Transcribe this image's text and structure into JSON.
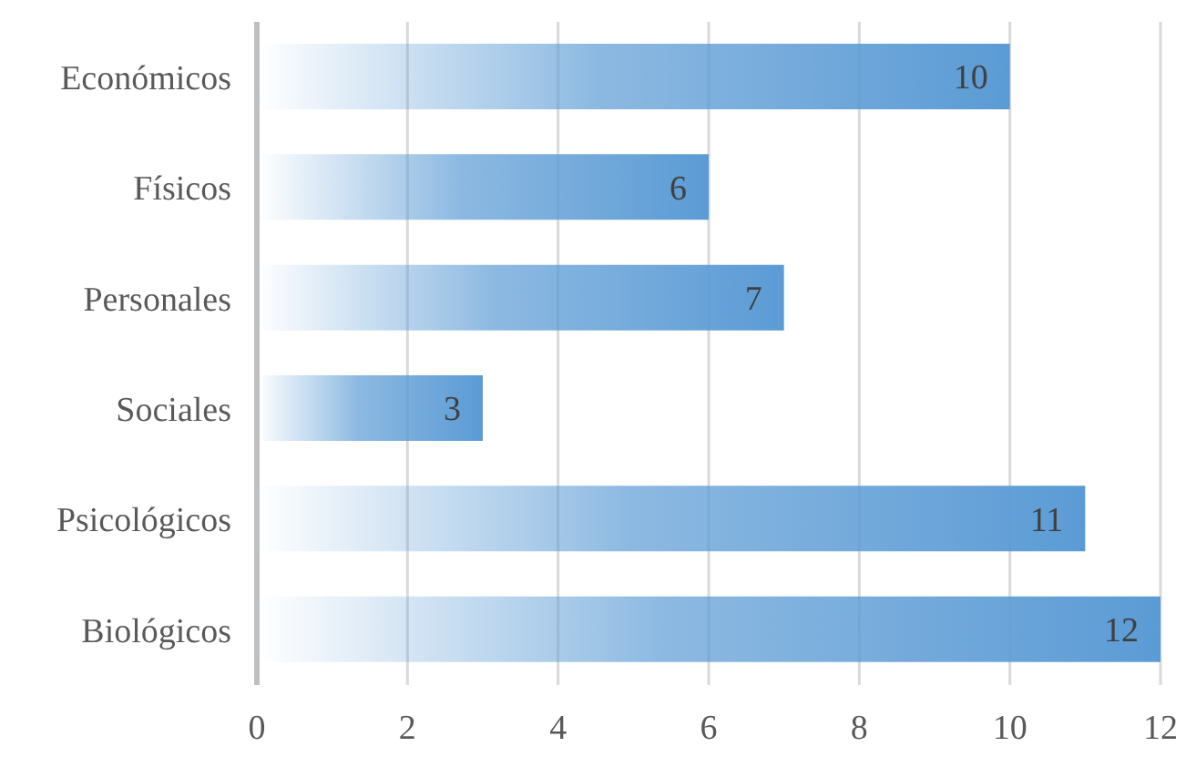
{
  "chart_data": {
    "type": "bar",
    "orientation": "horizontal",
    "categories": [
      "Económicos",
      "Físicos",
      "Personales",
      "Sociales",
      "Psicológicos",
      "Biológicos"
    ],
    "values": [
      10,
      6,
      7,
      3,
      11,
      12
    ],
    "color": "#5b9bd5",
    "xlim": [
      0,
      12
    ],
    "xticks": [
      0,
      2,
      4,
      6,
      8,
      10,
      12
    ],
    "grid": "x",
    "data_labels": true
  }
}
